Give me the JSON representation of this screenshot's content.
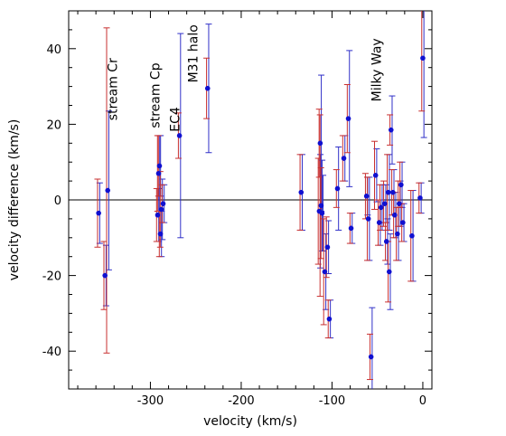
{
  "chart_data": {
    "type": "scatter",
    "title": "",
    "xlabel": "velocity (km/s)",
    "ylabel": "velocity difference (km/s)",
    "xlim": [
      -390,
      10
    ],
    "ylim": [
      -50,
      50
    ],
    "xticks": [
      -300,
      -200,
      -100,
      0
    ],
    "yticks": [
      -40,
      -20,
      0,
      20,
      40
    ],
    "x_tick_labels": [
      "-300",
      "-200",
      "-100",
      "0"
    ],
    "y_tick_labels": [
      "-40",
      "-20",
      "0",
      "20",
      "40"
    ],
    "reference_line_y": 0,
    "grid": false,
    "colors": {
      "point": "#1010d0",
      "error_blue": "#3030c8",
      "error_red": "#c83030",
      "axis": "#000000"
    },
    "annotations": [
      {
        "text": "stream Cr",
        "x": -337,
        "y": 21
      },
      {
        "text": "stream Cp",
        "x": -290,
        "y": 19
      },
      {
        "text": "EC4",
        "x": -268,
        "y": 18
      },
      {
        "text": "M31 halo",
        "x": -248,
        "y": 31
      },
      {
        "text": "Milky Way",
        "x": -46,
        "y": 26
      }
    ],
    "points": [
      {
        "x": -357,
        "y": -3.5,
        "eb": 8,
        "er": 9
      },
      {
        "x": -350,
        "y": -20,
        "eb": 8,
        "er": 9
      },
      {
        "x": -347,
        "y": 2.5,
        "eb": 21,
        "er": 43
      },
      {
        "x": -292,
        "y": -4,
        "eb": 7,
        "er": 7
      },
      {
        "x": -291,
        "y": 7,
        "eb": 10,
        "er": 10
      },
      {
        "x": -290,
        "y": 9,
        "eb": 8,
        "er": 8
      },
      {
        "x": -289,
        "y": -9,
        "eb": 6,
        "er": 6
      },
      {
        "x": -288,
        "y": -2.5,
        "eb": 8,
        "er": 10
      },
      {
        "x": -286,
        "y": -1,
        "eb": 5,
        "er": 5
      },
      {
        "x": -268,
        "y": 17,
        "eb": 27,
        "er": 6
      },
      {
        "x": -237,
        "y": 29.5,
        "eb": 17,
        "er": 8
      },
      {
        "x": -134,
        "y": 2,
        "eb": 10,
        "er": 10
      },
      {
        "x": -114,
        "y": -3,
        "eb": 15,
        "er": 14
      },
      {
        "x": -113,
        "y": 15,
        "eb": 18,
        "er": 9
      },
      {
        "x": -112,
        "y": -1.5,
        "eb": 12,
        "er": 24
      },
      {
        "x": -111,
        "y": -3.5,
        "eb": 10,
        "er": 12
      },
      {
        "x": -108,
        "y": -19,
        "eb": 10,
        "er": 14
      },
      {
        "x": -105,
        "y": -12.5,
        "eb": 7,
        "er": 8
      },
      {
        "x": -103,
        "y": -31.5,
        "eb": 5,
        "er": 5
      },
      {
        "x": -94,
        "y": 3,
        "eb": 11,
        "er": 5
      },
      {
        "x": -87,
        "y": 11,
        "eb": 6,
        "er": 6
      },
      {
        "x": -82,
        "y": 21.5,
        "eb": 18,
        "er": 9
      },
      {
        "x": -79,
        "y": -7.5,
        "eb": 4,
        "er": 4
      },
      {
        "x": -62,
        "y": 1,
        "eb": 5,
        "er": 6
      },
      {
        "x": -60,
        "y": -5,
        "eb": 11,
        "er": 11
      },
      {
        "x": -57,
        "y": -41.5,
        "eb": 13,
        "er": 6
      },
      {
        "x": -52,
        "y": 6.5,
        "eb": 7,
        "er": 9
      },
      {
        "x": -48,
        "y": -6,
        "eb": 6,
        "er": 6
      },
      {
        "x": -46,
        "y": -2,
        "eb": 6,
        "er": 6
      },
      {
        "x": -42,
        "y": -1,
        "eb": 5,
        "er": 6
      },
      {
        "x": -40,
        "y": -11,
        "eb": 6,
        "er": 5
      },
      {
        "x": -38,
        "y": 2,
        "eb": 10,
        "er": 10
      },
      {
        "x": -37,
        "y": -19,
        "eb": 10,
        "er": 8
      },
      {
        "x": -35,
        "y": 18.5,
        "eb": 9,
        "er": 4
      },
      {
        "x": -33,
        "y": 2,
        "eb": 6,
        "er": 6
      },
      {
        "x": -31,
        "y": -4,
        "eb": 6,
        "er": 6
      },
      {
        "x": -28,
        "y": -9,
        "eb": 7,
        "er": 7
      },
      {
        "x": -26,
        "y": -1,
        "eb": 6,
        "er": 6
      },
      {
        "x": -24,
        "y": 4,
        "eb": 6,
        "er": 6
      },
      {
        "x": -22,
        "y": -6,
        "eb": 5,
        "er": 5
      },
      {
        "x": -12,
        "y": -9.5,
        "eb": 12,
        "er": 12
      },
      {
        "x": -3,
        "y": 0.5,
        "eb": 4,
        "er": 4
      },
      {
        "x": 0,
        "y": 37.5,
        "eb": 21,
        "er": 14
      }
    ]
  }
}
